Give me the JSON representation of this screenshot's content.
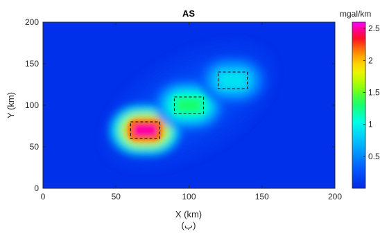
{
  "chart_data": {
    "type": "heatmap",
    "title": "AS",
    "subtitle": "(ب)",
    "xlabel": "X (km)",
    "ylabel": "Y (km)",
    "xlim": [
      0,
      200
    ],
    "ylim": [
      0,
      200
    ],
    "xticks": [
      0,
      50,
      100,
      150,
      200
    ],
    "yticks": [
      0,
      50,
      100,
      150,
      200
    ],
    "colorbar": {
      "label": "mgal/km",
      "range": [
        0,
        2.6
      ],
      "ticks": [
        0.5,
        1,
        1.5,
        2,
        2.5
      ],
      "tick_labels": [
        "0.5",
        "1",
        "1.5",
        "2",
        "2.5"
      ],
      "colormap": "jet"
    },
    "anomalies": [
      {
        "x_range": [
          60,
          80
        ],
        "y_range": [
          60,
          80
        ],
        "peak_value": 2.5,
        "outline": "dashed"
      },
      {
        "x_range": [
          90,
          110
        ],
        "y_range": [
          90,
          110
        ],
        "peak_value": 1.3,
        "outline": "dashed"
      },
      {
        "x_range": [
          120,
          140
        ],
        "y_range": [
          120,
          140
        ],
        "peak_value": 0.9,
        "outline": "dashed"
      }
    ],
    "background_value": 0.05,
    "grid": false
  },
  "colors": {
    "background": "#ffffff",
    "axes": "#262626",
    "outline": "#000000"
  }
}
